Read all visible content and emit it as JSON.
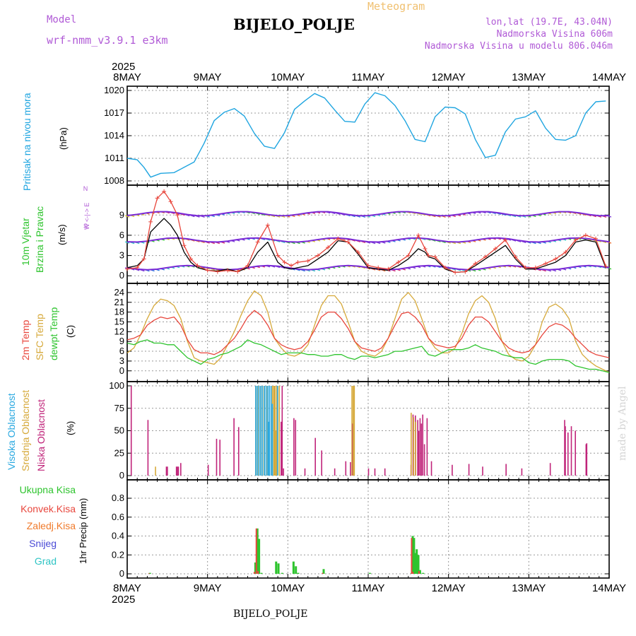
{
  "header": {
    "title": "BIJELO_POLJE",
    "meteogram": "Meteogram",
    "model_label": "Model",
    "model_name": "wrf-nmm_v3.9.1 e3km",
    "lonlat": "lon,lat (19.7E, 43.04N)",
    "elevation": "Nadmorska Visina 606m",
    "model_elevation": "Nadmorska Visina u modelu 806.046m",
    "footer": "BIJELO_POLJE",
    "credit": "made by Angel"
  },
  "colors": {
    "pressure": "#1fa5e0",
    "temp": "#e8463c",
    "sfc": "#d6a93a",
    "dew": "#2ec42e",
    "high_cloud": "#29a8e0",
    "mid_cloud": "#d6a93a",
    "low_cloud": "#c0247a",
    "total_precip": "#2ec42e",
    "conv_precip": "#e8463c",
    "freezing": "#f07a2a",
    "snow": "#4a4ad6",
    "hail": "#2ec4c4",
    "label_purple": "#b05ad6"
  },
  "time_axis": {
    "year": "2025",
    "day_labels": [
      "8MAY",
      "9MAY",
      "10MAY",
      "11MAY",
      "12MAY",
      "13MAY",
      "14MAY"
    ]
  },
  "chart_data": [
    {
      "type": "line",
      "title": "Pritisak na nivou mora",
      "ylabel": "(hPa)",
      "ylim": [
        1008,
        1020
      ],
      "yticks": [
        1008,
        1011,
        1014,
        1017,
        1020
      ],
      "x_hours": [
        0,
        3,
        5,
        7,
        10,
        14,
        17,
        20,
        23,
        26,
        29,
        32,
        35,
        38,
        41,
        44,
        47,
        50,
        53,
        56,
        59,
        62,
        65,
        68,
        71,
        74,
        77,
        80,
        83,
        86,
        89,
        92,
        95,
        98,
        101,
        104,
        107,
        110,
        113,
        116,
        119,
        122,
        125,
        128,
        131,
        134,
        137,
        140,
        143
      ],
      "series": [
        {
          "name": "Pritisak",
          "values": [
            1011,
            1010.8,
            1009.8,
            1008.5,
            1009,
            1009.1,
            1009.8,
            1010.5,
            1013,
            1016,
            1017.1,
            1017.6,
            1016.6,
            1014.3,
            1012.6,
            1012.3,
            1014.4,
            1017.5,
            1018.6,
            1019.6,
            1019,
            1017.4,
            1015.9,
            1015.8,
            1018.2,
            1019.7,
            1019.3,
            1018,
            1016,
            1013.5,
            1013.2,
            1016.5,
            1017.8,
            1017.7,
            1016.9,
            1013.5,
            1011.1,
            1011.4,
            1014.5,
            1016.2,
            1016.5,
            1017.3,
            1015,
            1013.5,
            1013.4,
            1014,
            1017,
            1018.5,
            1018.6
          ]
        }
      ]
    },
    {
      "type": "line",
      "title": "10m Vjetar Brzina i Pravac",
      "ylabel": "(m/s)",
      "ylim": [
        -0.5,
        12.8
      ],
      "yticks": [
        0,
        3,
        6,
        9
      ],
      "compass": "W  <- | ->  E",
      "x_hours": [
        0,
        3,
        5,
        7,
        9,
        11,
        13,
        15,
        17,
        19,
        21,
        24,
        27,
        30,
        33,
        36,
        39,
        42,
        45,
        47,
        49,
        51,
        54,
        57,
        60,
        63,
        66,
        69,
        72,
        75,
        78,
        81,
        84,
        87,
        89,
        90,
        92,
        95,
        98,
        101,
        104,
        107,
        110,
        113,
        116,
        119,
        122,
        125,
        128,
        131,
        134,
        137,
        140,
        143
      ],
      "series": [
        {
          "name": "Brzina (model)",
          "values": [
            1.2,
            1.5,
            2.5,
            6.5,
            7.5,
            8.5,
            7.5,
            6,
            3.5,
            2,
            1.2,
            0.8,
            0.7,
            1,
            0.6,
            1.2,
            3.5,
            5,
            2,
            1.2,
            1,
            1.2,
            1.5,
            2.5,
            3.5,
            5.2,
            5,
            3.2,
            1.2,
            1,
            0.8,
            1.5,
            2.5,
            4,
            3.5,
            2.8,
            2.5,
            1,
            0.5,
            0.6,
            1.5,
            2.5,
            3.5,
            4.5,
            2.5,
            1,
            1,
            1.5,
            2,
            3,
            5,
            5.3,
            5,
            1.2
          ]
        },
        {
          "name": "Udari",
          "values": [
            1,
            1.2,
            2.5,
            8,
            11.5,
            12.5,
            11,
            9,
            4.5,
            2.5,
            1.5,
            0.8,
            0.6,
            0.8,
            0.6,
            1.5,
            5,
            7.5,
            3,
            2,
            1.5,
            2,
            2.2,
            3,
            4.2,
            5.5,
            5,
            3.5,
            1.5,
            1.2,
            1,
            2,
            3,
            6,
            4,
            3,
            2.8,
            1.2,
            0.5,
            0.6,
            1.8,
            2.8,
            4,
            5.3,
            2.8,
            1.2,
            1.2,
            1.8,
            2.5,
            3.5,
            5.3,
            6,
            5.5,
            1.4
          ]
        }
      ]
    },
    {
      "type": "line",
      "title": "2m Temp / SFC Temp / dewpt Temp",
      "ylabel": "(C)",
      "ylim": [
        -2,
        25.5
      ],
      "yticks": [
        0,
        3,
        6,
        9,
        12,
        15,
        18,
        21,
        24
      ],
      "x_hours": [
        0,
        2,
        4,
        6,
        8,
        10,
        12,
        14,
        16,
        18,
        20,
        22,
        24,
        26,
        28,
        30,
        32,
        34,
        36,
        38,
        40,
        42,
        44,
        46,
        48,
        50,
        52,
        54,
        56,
        58,
        60,
        62,
        64,
        66,
        68,
        70,
        72,
        74,
        76,
        78,
        80,
        82,
        84,
        86,
        88,
        90,
        92,
        94,
        96,
        98,
        100,
        102,
        104,
        106,
        108,
        110,
        112,
        114,
        116,
        118,
        120,
        122,
        124,
        126,
        128,
        130,
        132,
        134,
        136,
        138,
        140,
        142,
        144
      ],
      "series": [
        {
          "name": "2m Temp",
          "values": [
            9.5,
            10,
            11,
            14,
            15.5,
            16.5,
            16,
            16.5,
            14,
            9.5,
            6.5,
            5.5,
            5.5,
            5,
            6,
            8,
            10,
            13,
            16.5,
            18.5,
            17,
            14,
            10,
            8,
            7,
            6.5,
            7,
            9,
            12.5,
            16.5,
            18,
            18,
            16,
            13,
            9,
            7,
            6.5,
            6,
            7,
            10,
            14,
            17.5,
            18,
            16.5,
            14,
            10,
            8,
            7.5,
            7,
            7.5,
            10,
            14,
            16.5,
            16.5,
            15,
            12,
            9,
            7,
            6,
            5.5,
            6,
            8,
            11,
            13.5,
            14.5,
            14,
            12.5,
            10,
            8,
            6,
            5,
            4.5,
            4
          ]
        },
        {
          "name": "SFC Temp",
          "values": [
            5.5,
            7,
            11,
            16,
            20,
            22,
            21.5,
            20,
            16,
            9,
            4,
            3,
            2.5,
            2,
            4,
            8,
            12,
            17,
            21.5,
            24.5,
            23,
            18,
            10,
            7,
            5,
            4.5,
            5.5,
            8,
            14,
            20,
            23,
            23,
            20.5,
            15,
            9,
            6,
            5,
            4.5,
            6,
            10,
            16,
            22,
            24,
            21.5,
            16,
            10,
            7,
            5.5,
            5.5,
            7,
            11.5,
            17.5,
            21.5,
            23,
            21,
            16,
            9,
            5,
            3.5,
            3,
            4.5,
            8,
            15,
            19.5,
            20.5,
            19,
            16,
            9,
            5,
            3,
            1.5,
            0.5,
            -0.5
          ]
        },
        {
          "name": "dewpt Temp",
          "values": [
            8.5,
            8,
            9,
            9.5,
            8.5,
            8.5,
            8,
            8,
            6,
            4,
            3,
            2,
            3.5,
            4,
            5,
            5.5,
            6.5,
            7.5,
            9.5,
            8.5,
            8,
            7,
            6,
            5,
            5.5,
            5.5,
            5.5,
            5,
            5,
            4.5,
            4.5,
            5,
            5,
            4,
            3.5,
            4.5,
            4.5,
            4,
            4.5,
            5,
            6,
            6,
            6.5,
            7,
            7.5,
            5,
            4.5,
            5.5,
            6.5,
            6.5,
            6.5,
            7,
            8,
            7,
            6.5,
            6,
            5,
            4.5,
            4,
            4,
            2.5,
            2,
            3,
            3.5,
            3.5,
            3.5,
            3,
            1.5,
            1,
            0.5,
            0.5,
            0,
            -0.5
          ]
        }
      ]
    },
    {
      "type": "bar",
      "title": "Visoka / Srednja / Niska Oblacnost",
      "ylabel": "(%)",
      "ylim": [
        0,
        100
      ],
      "yticks": [
        0,
        25,
        50,
        75,
        100
      ],
      "bar_hours": [
        0.7,
        5.7,
        8.2,
        11.2,
        11.5,
        14.2,
        14.5,
        14.8,
        15.5,
        23.7,
        26.2,
        27.2,
        31.4,
        32.8,
        38.2,
        38.4,
        38.7,
        38.9,
        39.1,
        39.4,
        39.7,
        39.9,
        40.2,
        40.4,
        40.7,
        41.0,
        41.3,
        41.5,
        41.7,
        42.0,
        42.3,
        42.5,
        42.8,
        43.0,
        43.2,
        43.4,
        43.6,
        43.9,
        44.1,
        44.4,
        44.7,
        44.9,
        45.2,
        45.5,
        45.8,
        46.2,
        49.3,
        49.8,
        52.6,
        55.7,
        57.6,
        61.5,
        64.8,
        66.2,
        66.9,
        67.3,
        67.6,
        71.6,
        73.5,
        76.5,
        84.3,
        84.6,
        84.9,
        85.3,
        85.6,
        85.9,
        86.3,
        86.6,
        87.0,
        87.4,
        87.8,
        88.3,
        89.1,
        90.4,
        96.6,
        101.6,
        105.7,
        112.7,
        117.4,
        125.9,
        130.2,
        130.4,
        131.2,
        132.2,
        133.4,
        136.6,
        136.8
      ],
      "series": [
        {
          "name": "Visoka Oblacnost",
          "values": [
            0,
            0,
            0,
            0,
            0,
            0,
            0,
            0,
            0,
            0,
            0,
            0,
            0,
            0,
            0,
            100,
            0,
            100,
            0,
            100,
            0,
            100,
            0,
            100,
            0,
            100,
            0,
            100,
            0,
            100,
            60,
            100,
            0,
            100,
            0,
            80,
            0,
            0,
            0,
            0,
            0,
            100,
            0,
            0,
            0,
            0,
            0,
            0,
            0,
            0,
            0,
            0,
            0,
            0,
            0,
            0,
            0,
            0,
            0,
            0,
            0,
            0,
            0,
            0,
            0,
            0,
            0,
            0,
            0,
            0,
            0,
            0,
            0,
            0,
            0,
            0,
            0,
            0,
            0,
            0,
            0,
            0,
            0,
            0,
            0,
            0,
            0
          ]
        },
        {
          "name": "Srednja Oblacnost",
          "values": [
            0,
            0,
            10,
            0,
            0,
            0,
            0,
            0,
            0,
            0,
            0,
            0,
            0,
            0,
            100,
            0,
            100,
            0,
            100,
            0,
            100,
            0,
            100,
            0,
            100,
            0,
            100,
            0,
            100,
            0,
            0,
            0,
            100,
            0,
            100,
            0,
            100,
            100,
            50,
            100,
            100,
            0,
            100,
            0,
            0,
            0,
            0,
            0,
            0,
            0,
            0,
            0,
            0,
            0,
            100,
            100,
            100,
            0,
            0,
            0,
            0,
            70,
            0,
            65,
            0,
            60,
            0,
            0,
            0,
            0,
            0,
            0,
            0,
            0,
            0,
            0,
            0,
            0,
            0,
            0,
            0,
            0,
            0,
            0,
            0,
            0,
            0
          ]
        },
        {
          "name": "Niska Oblacnost",
          "values": [
            100,
            62,
            0,
            10,
            10,
            10,
            10,
            10,
            14,
            12,
            41,
            40,
            64,
            54,
            0,
            0,
            0,
            0,
            0,
            0,
            0,
            0,
            0,
            0,
            0,
            0,
            0,
            0,
            0,
            0,
            0,
            0,
            0,
            0,
            0,
            0,
            0,
            0,
            0,
            0,
            0,
            0,
            0,
            60,
            100,
            8,
            64,
            62,
            8,
            42,
            28,
            8,
            16,
            15,
            58,
            0,
            0,
            8,
            8,
            8,
            12,
            0,
            68,
            0,
            67,
            0,
            62,
            50,
            64,
            58,
            68,
            35,
            64,
            16,
            12,
            13,
            10,
            13,
            8,
            14,
            62,
            55,
            48,
            55,
            50,
            35,
            36
          ]
        }
      ]
    },
    {
      "type": "bar",
      "title": "1hr Precip",
      "ylabel": "1hr Precip (mm)",
      "ylim": [
        0,
        0.95
      ],
      "yticks": [
        0,
        0.2,
        0.4,
        0.6,
        0.8
      ],
      "bar_hours": [
        6.8,
        38.3,
        38.9,
        39.4,
        40.1,
        44.5,
        45.2,
        46.3,
        49.7,
        50.4,
        51.1,
        58.7,
        72.5,
        85.0,
        85.3,
        85.7,
        86.1,
        86.5,
        87.0,
        87.5,
        88.4
      ],
      "series": [
        {
          "name": "Ukupna Kisa",
          "values": [
            0.01,
            0.12,
            0.48,
            0.37,
            0.01,
            0.13,
            0.11,
            0.01,
            0.13,
            0.08,
            0.01,
            0.05,
            0.01,
            0.01,
            0.4,
            0.38,
            0.22,
            0.26,
            0.2,
            0.04,
            0.01
          ]
        },
        {
          "name": "Konvek.Kisa",
          "values": [
            0.005,
            0.02,
            0.48,
            0.03,
            0,
            0,
            0,
            0,
            0,
            0,
            0,
            0.01,
            0,
            0,
            0.38,
            0.02,
            0,
            0,
            0,
            0.03,
            0
          ]
        }
      ]
    }
  ],
  "labels": {
    "pressure": {
      "main": "Pritisak na nivou mora",
      "unit": "(hPa)"
    },
    "wind": {
      "line1": "10m Vjetar",
      "line2": "Brzina i Pravac",
      "unit": "(m/s)",
      "compass_n": "N",
      "compass_we": "W  <-|->  E",
      "compass_s": "S"
    },
    "temp": {
      "t2m": "2m Temp",
      "sfc": "SFC Temp",
      "dew": "dewpt Temp",
      "unit": "(C)"
    },
    "cloud": {
      "high": "Visoka Oblacnost",
      "mid": "Srednja Oblacnost",
      "low": "Niska Oblacnost",
      "unit": "(%)"
    },
    "precip": {
      "total": "Ukupna Kisa",
      "conv": "Konvek.Kisa",
      "freez": "Zaledj.Kisa",
      "snow": "Snijeg",
      "hail": "Grad",
      "unit": "1hr Precip (mm)"
    }
  }
}
